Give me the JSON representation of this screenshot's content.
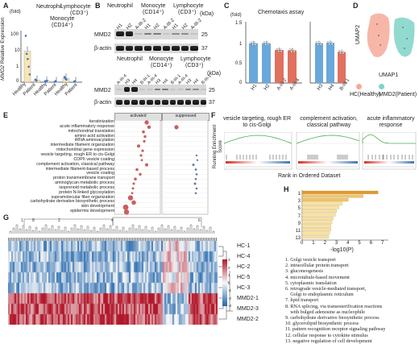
{
  "panels": {
    "A": {
      "letter": "A",
      "y_unit": "(fold)",
      "ylabel_gene": "MMD2",
      "ylabel_rest": " Relative Expression",
      "yticks": [
        "100",
        "10",
        "1",
        "0"
      ],
      "group_labels": [
        "Neutrophil",
        "Monocyte",
        "(CD14⁺)",
        "Lymphocyte",
        "(CD3⁺)"
      ],
      "x_labels": [
        "Healthy",
        "Patient",
        "Healthy",
        "Patient",
        "Healthy",
        "Patient"
      ],
      "bar_fraction": [
        0.62,
        0.04,
        0.02,
        0.01,
        0.08,
        0.01
      ],
      "colors": {
        "bar": "#fbe6b0",
        "dot": "#3a78c9"
      }
    },
    "B": {
      "letter": "B",
      "kda": "(kDa)",
      "top_groups": [
        "Neutrophil",
        "Monocyte",
        "(CD14⁺)",
        "Lymphocyte",
        "(CD3⁺)"
      ],
      "top_lanes": [
        "H1",
        "H2",
        "A-III-2",
        "H1",
        "H2",
        "A-III-2",
        "H1",
        "H2",
        "A-III-2"
      ],
      "bottom_groups": [
        "Neutrophil",
        "Monocyte",
        "(CD14⁺)",
        "Lymphocyte",
        "(CD3⁺)"
      ],
      "bottom_lanes": [
        "A-III-4",
        "H3",
        "H4",
        "B-III-1",
        "A-III-4",
        "H3",
        "H4",
        "B-III-1",
        "A-III-4",
        "H3",
        "H4",
        "B-III-1"
      ],
      "rows": [
        "MMD2",
        "β-actin"
      ],
      "markers": [
        "25",
        "37"
      ]
    },
    "C": {
      "letter": "C",
      "title": "Chemotaxis assay",
      "y_unit": "(fold)",
      "yticks": [
        "1.5",
        "1",
        "0.5",
        "0"
      ],
      "left_groups": [
        "H1",
        "H2",
        "A-III-2",
        "A-III-4"
      ],
      "left_values": [
        1.0,
        1.0,
        0.83,
        0.82
      ],
      "right_groups": [
        "H3",
        "H4",
        "B-III-1"
      ],
      "right_values": [
        1.0,
        1.01,
        0.78
      ],
      "colors": {
        "healthy": "#6aa8dc",
        "patient": "#e07060"
      }
    },
    "D": {
      "letter": "D",
      "axis_x": "UMAP1",
      "axis_y": "UMAP2",
      "legend": [
        "HC(Healthy)",
        "MMD2(Patient)"
      ],
      "colors": {
        "hc": "#f6a999",
        "mmd2": "#7fd3c8"
      }
    },
    "E": {
      "letter": "E",
      "headers": [
        "activated",
        "suppressed"
      ],
      "terms": [
        "keratinization",
        "acute inflammatory response",
        "mitochondrial translation",
        "amino acid activation",
        "tRNA aminoacylation",
        "intermediate filament organization",
        "mitochondrial gene expression",
        "vesicle targeting, rough ER to cis-Golgi",
        "COPII vesicle coating",
        "complement activation, classical pathway",
        "intermediate filament-based process",
        "vesicle coating",
        "proton transmembrane transport",
        "aminoglycan metabolic process",
        "isoprenoid metabolic process",
        "protein N-linked glycosylation",
        "supramolecular fiber organization",
        "carbohydrate derivative biosynthetic process",
        "skin development",
        "epidermis development"
      ]
    },
    "F": {
      "letter": "F",
      "plots": [
        "vesicle targeting, rough ER to cis-Golgi",
        "complement activation, classical pathway",
        "acute inflammatory response"
      ],
      "ylabel": "Running Enrichment Score",
      "xlabel": "Rank in Ordered Dataset"
    },
    "G": {
      "letter": "G",
      "row_labels": [
        "HC-1",
        "HC-4",
        "HC-2",
        "HC-5",
        "HC-3",
        "MMD2-1",
        "MMD2-3",
        "MMD2-2"
      ],
      "cluster_tags": [
        "1",
        "8",
        "2",
        "4",
        "6"
      ],
      "scale_ticks": [
        "3",
        "2",
        "1",
        "0",
        "-1",
        "-2",
        "-3"
      ]
    },
    "H": {
      "letter": "H",
      "ranks": [
        "1",
        "3",
        "5",
        "7",
        "9",
        "11",
        "13"
      ],
      "xlabel": "-log10(P)",
      "xticks": [
        "0",
        "1",
        "2",
        "3",
        "4",
        "5",
        "6",
        "7"
      ],
      "values": [
        6.6,
        5.3,
        4.0,
        3.5,
        3.2,
        3.0,
        2.9,
        2.7,
        2.6,
        2.5,
        2.5,
        2.4,
        2.3
      ],
      "terms": [
        "1. Golgi vesicle transport",
        "2. intracellular protein transport",
        "3. gluconeogenesis",
        "4. microtubule-based movement",
        "5. cytoplasmic translation",
        "6. retrograde vesicle-mediated transport,",
        "    Golgi to endoplasmic reticulum",
        "7. lipid transport",
        "8. RNA splicing, via transesterification reactions",
        "    with bulged adenosine as nucleophile",
        "9. carbohydrate derivative biosynthetic process",
        "10. glycerolipid biosynthetic process",
        "11. pattern recognition receptor signaling pathway",
        "12. cellular response to cytokine stimulus",
        "13. negative regulation of cell development"
      ]
    }
  }
}
